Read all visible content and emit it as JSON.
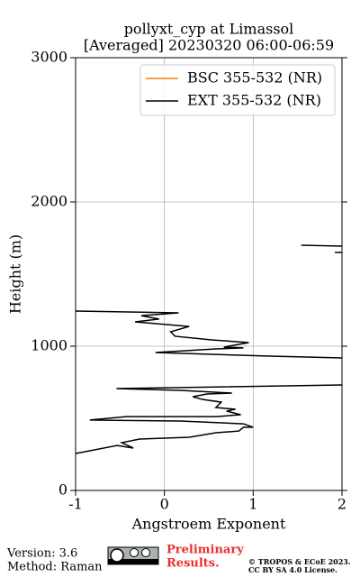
{
  "chart_data": {
    "type": "line",
    "title": "pollyxt_cyp at Limassol",
    "subtitle": "[Averaged] 20230320 06:00-06:59",
    "x_label": "Angstroem Exponent",
    "y_label": "Height (m)",
    "xlim": [
      -1,
      2
    ],
    "xticks": [
      -1,
      0,
      1,
      2
    ],
    "ylim": [
      0,
      3000
    ],
    "yticks": [
      0,
      1000,
      2000,
      3000
    ],
    "grid": true,
    "legend": "upper right",
    "y": [
      256,
      275,
      312,
      294,
      331,
      356,
      369,
      400,
      412,
      438,
      438,
      462,
      481,
      488,
      512,
      512,
      525,
      550,
      563,
      575,
      612,
      631,
      650,
      669,
      675,
      694,
      706,
      731,
      825,
      919,
      931,
      956,
      981,
      988,
      994,
      1025,
      1044,
      1069,
      1100,
      1137,
      1169,
      1188,
      1212,
      1231,
      1244,
      1500,
      1650,
      1650,
      1670,
      1694,
      1700
    ],
    "series": [
      {
        "name": "BSC 355-532 (NR)",
        "color": "#ff7f0e",
        "values": [
          null,
          null,
          null,
          null,
          null,
          null,
          null,
          null,
          null,
          null,
          null,
          null,
          null,
          null,
          null,
          null,
          null,
          null,
          null,
          null,
          null,
          null,
          null,
          null,
          null,
          null,
          null,
          null,
          null,
          null,
          null,
          null,
          null,
          null,
          null,
          null,
          null,
          null,
          null,
          null,
          null,
          null,
          null,
          null,
          null,
          null,
          null,
          null,
          null,
          null,
          null
        ]
      },
      {
        "name": "EXT 355-532 (NR)",
        "color": "#000000",
        "values": [
          -1.0,
          -0.84,
          -0.53,
          -0.35,
          -0.48,
          -0.28,
          0.28,
          0.58,
          0.84,
          0.89,
          1.0,
          0.89,
          0.18,
          -0.84,
          -0.43,
          0.58,
          0.86,
          0.7,
          0.8,
          0.58,
          0.64,
          0.43,
          0.32,
          0.48,
          0.76,
          0.18,
          -0.54,
          2.0,
          null,
          2.0,
          1.19,
          -0.1,
          0.58,
          0.89,
          0.67,
          0.95,
          0.53,
          0.12,
          0.07,
          0.28,
          -0.33,
          -0.06,
          -0.26,
          0.16,
          -1.0,
          null,
          1.92,
          2.0,
          null,
          2.0,
          1.54
        ]
      }
    ]
  },
  "footer": {
    "version": "Version: 3.6",
    "method": "Method: Raman",
    "preliminary": [
      "Preliminary",
      "Results."
    ],
    "copyright": [
      "© TROPOS & ECoE 2023.",
      "CC BY SA 4.0 License."
    ]
  }
}
